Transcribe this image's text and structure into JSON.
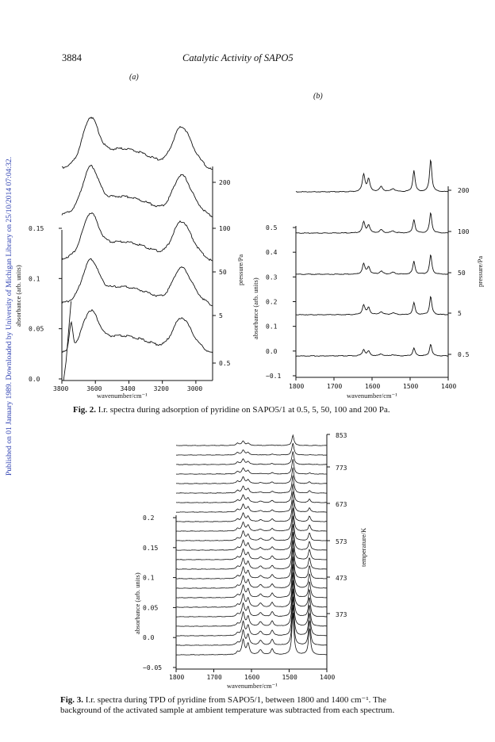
{
  "sidebar_note": "Published on 01 January 1989. Downloaded by University of Michigan Library on 25/10/2014 07:04:32.",
  "header": {
    "page_number": "3884",
    "running_title": "Catalytic Activity of SAPO5"
  },
  "figures": {
    "fig2": {
      "caption_label": "Fig. 2.",
      "caption_text": "I.r. spectra during adsorption of pyridine on SAPO5/1 at 0.5, 5, 50, 100 and 200 Pa.",
      "panel_a_label": "(a)",
      "panel_b_label": "(b)"
    },
    "fig3": {
      "caption_label": "Fig. 3.",
      "caption_line1": "I.r. spectra during TPD of pyridine from SAPO5/1, between 1800 and 1400 cm⁻¹. The",
      "caption_line2": "background of the activated sample at ambient temperature was subtracted from each spectrum."
    }
  },
  "chart_data": [
    {
      "id": "fig2a",
      "type": "line",
      "panel_label": "(a)",
      "xlabel": "wavenumber/cm⁻¹",
      "ylabel": "absorbance (arb. units)",
      "y2label": "pressure/Pa",
      "xlim": [
        3800,
        2900
      ],
      "ylim": [
        0.0,
        0.15
      ],
      "x_ticks": [
        "3800",
        "3600",
        "3400",
        "3200",
        "3000"
      ],
      "y_ticks": [
        "0.0",
        "0.05",
        "0.1",
        "0.15"
      ],
      "series_labels": [
        "0.5",
        "5",
        "50",
        "100",
        "200"
      ],
      "grid": false
    },
    {
      "id": "fig2b",
      "type": "line",
      "panel_label": "(b)",
      "xlabel": "wavenumber/cm⁻¹",
      "ylabel": "absorbance (arb. units)",
      "y2label": "pressure/Pa",
      "xlim": [
        1800,
        1400
      ],
      "ylim": [
        -0.1,
        0.5
      ],
      "x_ticks": [
        "1800",
        "1700",
        "1600",
        "1500",
        "1400"
      ],
      "y_ticks": [
        "−0.1",
        "0.0",
        "0.1",
        "0.2",
        "0.3",
        "0.4",
        "0.5"
      ],
      "series_labels": [
        "0.5",
        "5",
        "50",
        "100",
        "200"
      ],
      "grid": false
    },
    {
      "id": "fig3",
      "type": "line",
      "xlabel": "wavenumber/cm⁻¹",
      "ylabel": "absorbance (arb. units)",
      "y2label": "temperature/K",
      "xlim": [
        1800,
        1400
      ],
      "ylim": [
        -0.05,
        0.2
      ],
      "x_ticks": [
        "1800",
        "1700",
        "1600",
        "1500",
        "1400"
      ],
      "y_ticks": [
        "−0.05",
        "0.0",
        "0.05",
        "0.1",
        "0.15",
        "0.2"
      ],
      "series_labels": [
        "373",
        "473",
        "573",
        "673",
        "773",
        "853"
      ],
      "series_count": 23,
      "grid": false
    }
  ]
}
